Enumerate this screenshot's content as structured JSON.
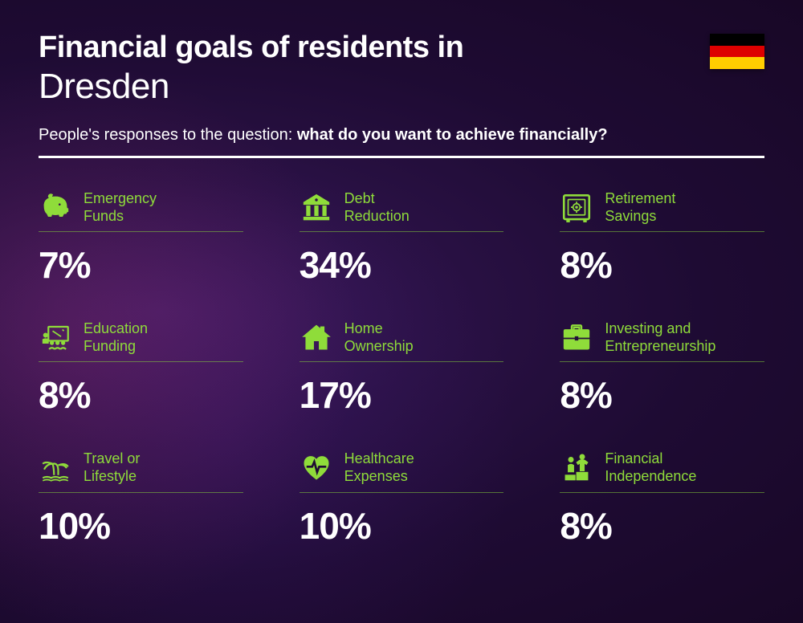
{
  "title_line1": "Financial goals of residents in",
  "title_line2": "Dresden",
  "subtitle_prefix": "People's responses to the question: ",
  "subtitle_bold": "what do you want to achieve financially?",
  "accent_color": "#8fdc3a",
  "text_color": "#ffffff",
  "flag": {
    "stripes": [
      "#000000",
      "#dd0000",
      "#ffce00"
    ]
  },
  "typography": {
    "title_line1_fontsize": 38,
    "title_line2_fontsize": 44,
    "subtitle_fontsize": 20,
    "label_fontsize": 18,
    "value_fontsize": 46
  },
  "layout": {
    "columns": 3,
    "rows": 3,
    "column_gap": 70,
    "row_gap": 42
  },
  "items": [
    {
      "icon": "piggy-bank-icon",
      "label_line1": "Emergency",
      "label_line2": "Funds",
      "value": "7%"
    },
    {
      "icon": "bank-icon",
      "label_line1": "Debt",
      "label_line2": "Reduction",
      "value": "34%"
    },
    {
      "icon": "safe-icon",
      "label_line1": "Retirement",
      "label_line2": "Savings",
      "value": "8%"
    },
    {
      "icon": "education-icon",
      "label_line1": "Education",
      "label_line2": "Funding",
      "value": "8%"
    },
    {
      "icon": "house-icon",
      "label_line1": "Home",
      "label_line2": "Ownership",
      "value": "17%"
    },
    {
      "icon": "briefcase-icon",
      "label_line1": "Investing and",
      "label_line2": "Entrepreneurship",
      "value": "8%"
    },
    {
      "icon": "travel-icon",
      "label_line1": "Travel or",
      "label_line2": "Lifestyle",
      "value": "10%"
    },
    {
      "icon": "healthcare-icon",
      "label_line1": "Healthcare",
      "label_line2": "Expenses",
      "value": "10%"
    },
    {
      "icon": "independence-icon",
      "label_line1": "Financial",
      "label_line2": "Independence",
      "value": "8%"
    }
  ]
}
